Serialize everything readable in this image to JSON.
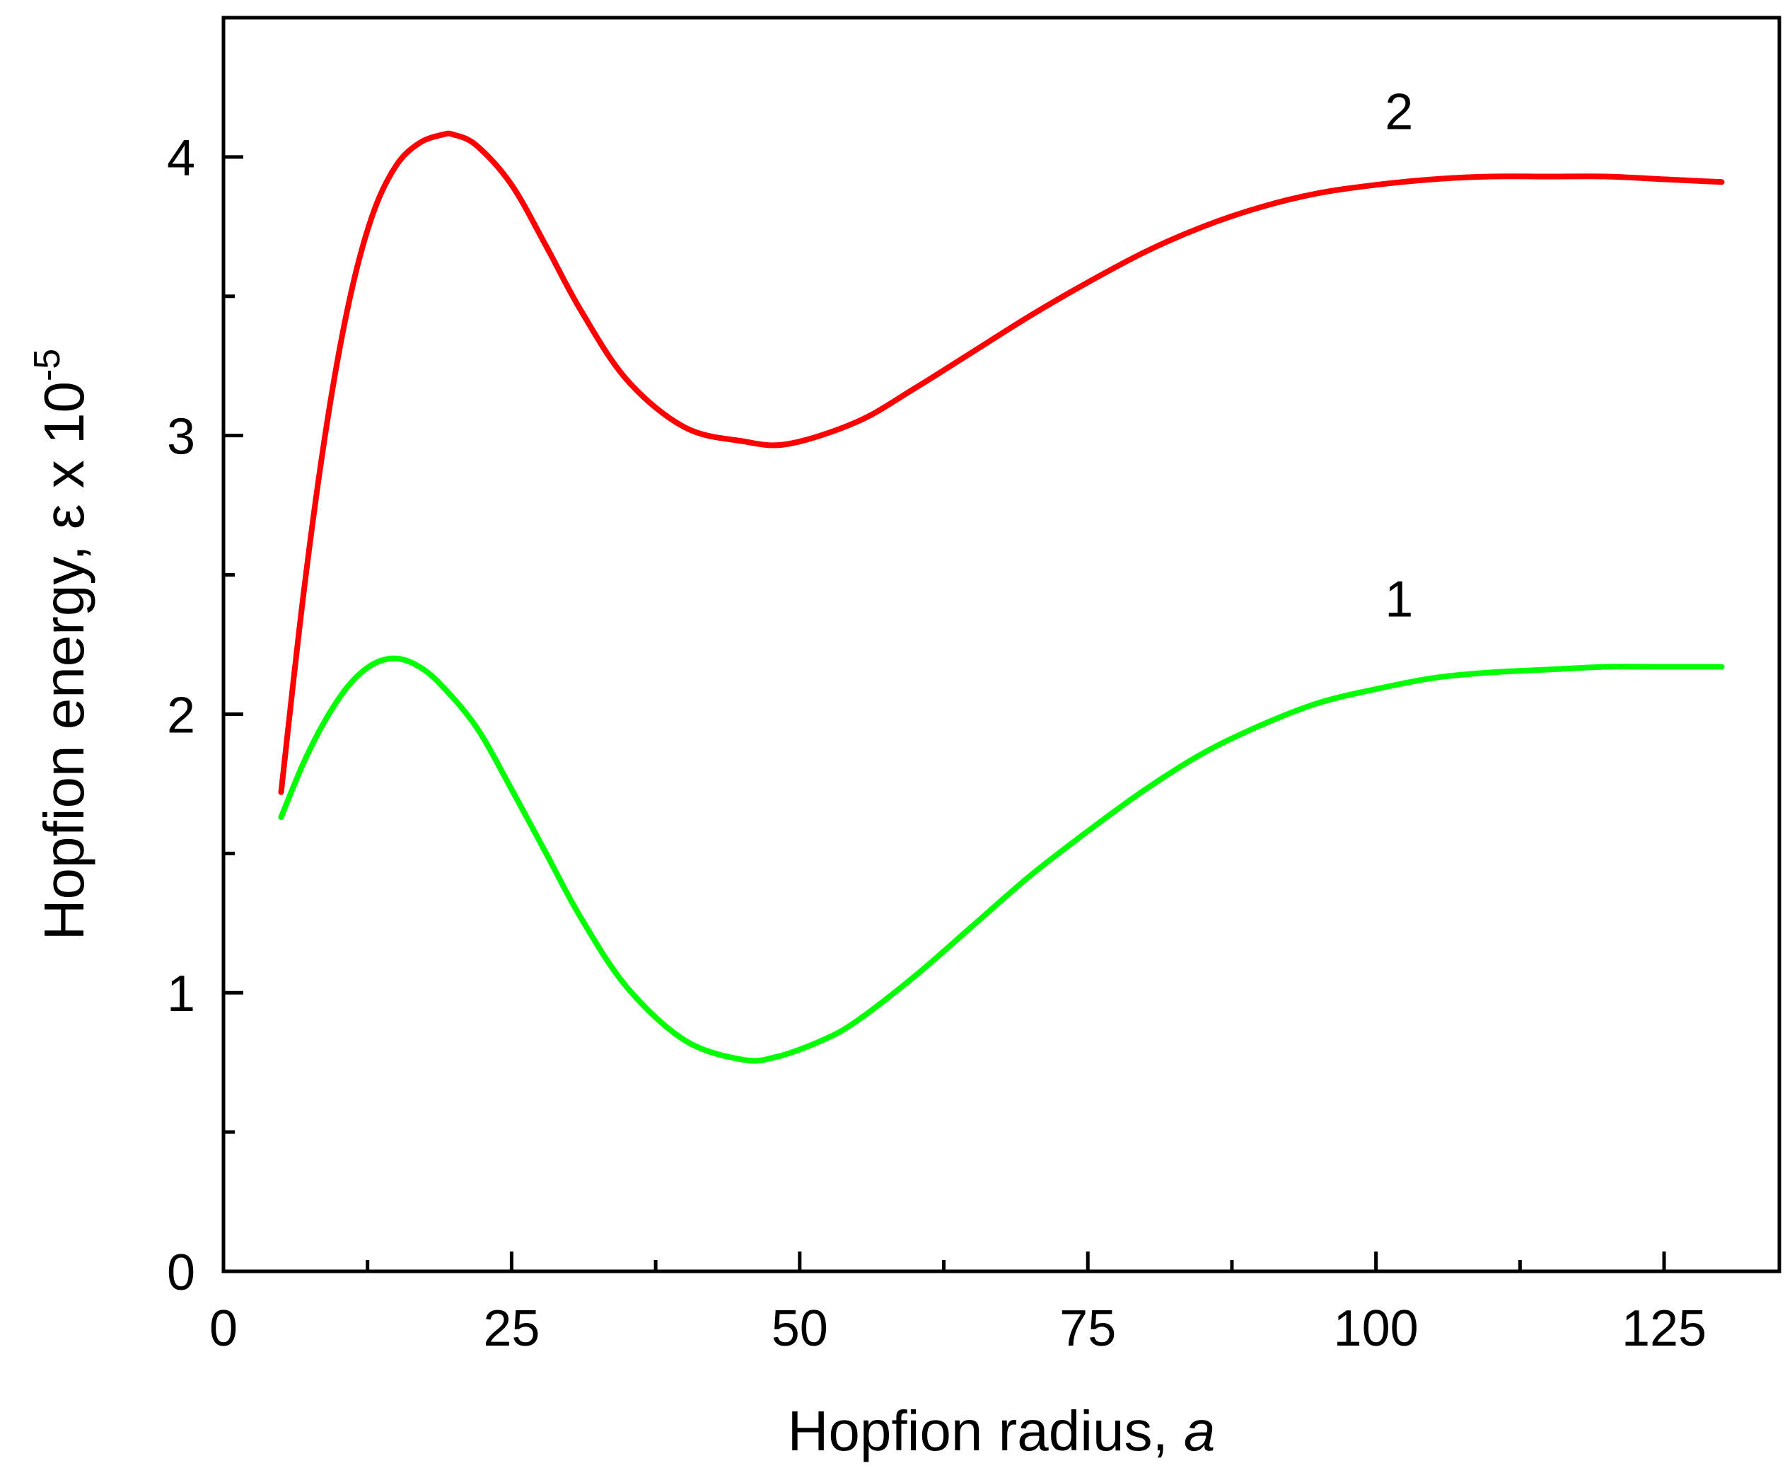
{
  "chart_data": {
    "type": "line",
    "xlabel": "Hopfion radius, ",
    "xlabel_var": "a",
    "ylabel": "Hopfion energy, ε x 10",
    "ylabel_exp": "-5",
    "xlim": [
      0,
      135
    ],
    "ylim": [
      0,
      4.5
    ],
    "xticks": [
      0,
      25,
      50,
      75,
      100,
      125
    ],
    "yticks": [
      0,
      1,
      2,
      3,
      4
    ],
    "x_minor_ticks": [
      12.5,
      37.5,
      62.5,
      87.5,
      112.5
    ],
    "y_minor_ticks": [
      0.5,
      1.5,
      2.5,
      3.5
    ],
    "grid": false,
    "legend": "none",
    "series": [
      {
        "name": "2",
        "color": "#ff0000",
        "x": [
          5,
          7,
          9,
          11,
          13,
          15,
          17,
          19,
          20,
          22,
          25,
          28,
          31,
          35,
          40,
          45,
          49,
          55,
          60,
          65,
          70,
          75,
          80,
          85,
          90,
          95,
          100,
          105,
          110,
          115,
          120,
          125,
          130
        ],
        "y": [
          1.72,
          2.45,
          3.05,
          3.5,
          3.8,
          3.97,
          4.05,
          4.08,
          4.08,
          4.04,
          3.9,
          3.68,
          3.45,
          3.2,
          3.03,
          2.98,
          2.97,
          3.05,
          3.17,
          3.3,
          3.43,
          3.55,
          3.66,
          3.75,
          3.82,
          3.87,
          3.9,
          3.92,
          3.93,
          3.93,
          3.93,
          3.92,
          3.91
        ],
        "label_x": 102,
        "label_y": 4.1
      },
      {
        "name": "1",
        "color": "#00ff00",
        "x": [
          5,
          7,
          9,
          11,
          13,
          15,
          17,
          19,
          22,
          25,
          28,
          31,
          35,
          40,
          45,
          48,
          52,
          55,
          60,
          65,
          70,
          75,
          80,
          85,
          90,
          95,
          100,
          105,
          110,
          115,
          120,
          125,
          130
        ],
        "y": [
          1.63,
          1.83,
          1.99,
          2.11,
          2.18,
          2.2,
          2.17,
          2.1,
          1.95,
          1.73,
          1.5,
          1.27,
          1.02,
          0.83,
          0.76,
          0.77,
          0.83,
          0.9,
          1.06,
          1.24,
          1.42,
          1.58,
          1.73,
          1.86,
          1.96,
          2.04,
          2.09,
          2.13,
          2.15,
          2.16,
          2.17,
          2.17,
          2.17
        ],
        "label_x": 102,
        "label_y": 2.35
      }
    ]
  }
}
